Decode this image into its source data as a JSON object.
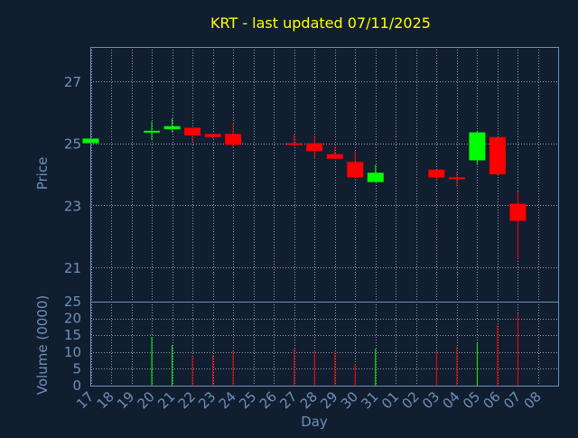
{
  "title": "KRT - last updated 07/11/2025",
  "colors": {
    "background": "#111e30",
    "title": "#ffff00",
    "axis_text": "#6f8fb8",
    "axis_label": "#6f8fb8",
    "frame": "#6f8fb8",
    "grid": "#8f9fb8",
    "up": "#00ff00",
    "down": "#ff0000"
  },
  "chart_data": [
    {
      "type": "candlestick",
      "ylabel": "Price",
      "ylim": [
        19.9,
        28.1
      ],
      "yticks": [
        21,
        23,
        25,
        27
      ],
      "grid": true,
      "days": [
        "17",
        "18",
        "19",
        "20",
        "21",
        "22",
        "23",
        "24",
        "25",
        "26",
        "27",
        "28",
        "29",
        "30",
        "31",
        "01",
        "02",
        "03",
        "04",
        "05",
        "06",
        "07",
        "08"
      ],
      "candles": [
        {
          "day": "17",
          "open": 25.0,
          "high": 25.15,
          "low": 25.0,
          "close": 25.15
        },
        {
          "day": "20",
          "open": 25.35,
          "high": 25.7,
          "low": 25.1,
          "close": 25.4
        },
        {
          "day": "21",
          "open": 25.45,
          "high": 25.8,
          "low": 25.35,
          "close": 25.55
        },
        {
          "day": "22",
          "open": 25.5,
          "high": 25.5,
          "low": 25.05,
          "close": 25.25
        },
        {
          "day": "23",
          "open": 25.3,
          "high": 25.3,
          "low": 25.15,
          "close": 25.2
        },
        {
          "day": "24",
          "open": 25.3,
          "high": 25.65,
          "low": 24.85,
          "close": 24.95
        },
        {
          "day": "27",
          "open": 25.0,
          "high": 25.3,
          "low": 24.9,
          "close": 24.95
        },
        {
          "day": "28",
          "open": 25.0,
          "high": 25.25,
          "low": 24.5,
          "close": 24.75
        },
        {
          "day": "29",
          "open": 24.65,
          "high": 24.9,
          "low": 24.5,
          "close": 24.5
        },
        {
          "day": "30",
          "open": 24.4,
          "high": 24.75,
          "low": 23.85,
          "close": 23.9
        },
        {
          "day": "31",
          "open": 23.75,
          "high": 24.3,
          "low": 23.75,
          "close": 24.05
        },
        {
          "day": "03",
          "open": 24.15,
          "high": 24.15,
          "low": 23.8,
          "close": 23.9
        },
        {
          "day": "04",
          "open": 23.9,
          "high": 24.05,
          "low": 23.6,
          "close": 23.85
        },
        {
          "day": "05",
          "open": 24.45,
          "high": 25.4,
          "low": 24.3,
          "close": 25.35
        },
        {
          "day": "06",
          "open": 25.2,
          "high": 25.2,
          "low": 24.0,
          "close": 24.0
        },
        {
          "day": "07",
          "open": 23.05,
          "high": 23.45,
          "low": 21.25,
          "close": 22.5
        }
      ]
    },
    {
      "type": "bar",
      "ylabel": "Volume (0000)",
      "xlabel": "Day",
      "ylim": [
        0,
        25
      ],
      "yticks": [
        0,
        5,
        10,
        15,
        20,
        25
      ],
      "grid": true,
      "categories": [
        "17",
        "20",
        "21",
        "22",
        "23",
        "24",
        "27",
        "28",
        "29",
        "30",
        "31",
        "03",
        "04",
        "05",
        "06",
        "07"
      ],
      "values": [
        0.3,
        14.5,
        12,
        9,
        9,
        10.5,
        11,
        10.5,
        10,
        6.5,
        11,
        10,
        11.5,
        13,
        18,
        21.5
      ],
      "directions": [
        "up",
        "up",
        "up",
        "down",
        "down",
        "down",
        "down",
        "down",
        "down",
        "down",
        "up",
        "down",
        "down",
        "up",
        "down",
        "down"
      ]
    }
  ]
}
